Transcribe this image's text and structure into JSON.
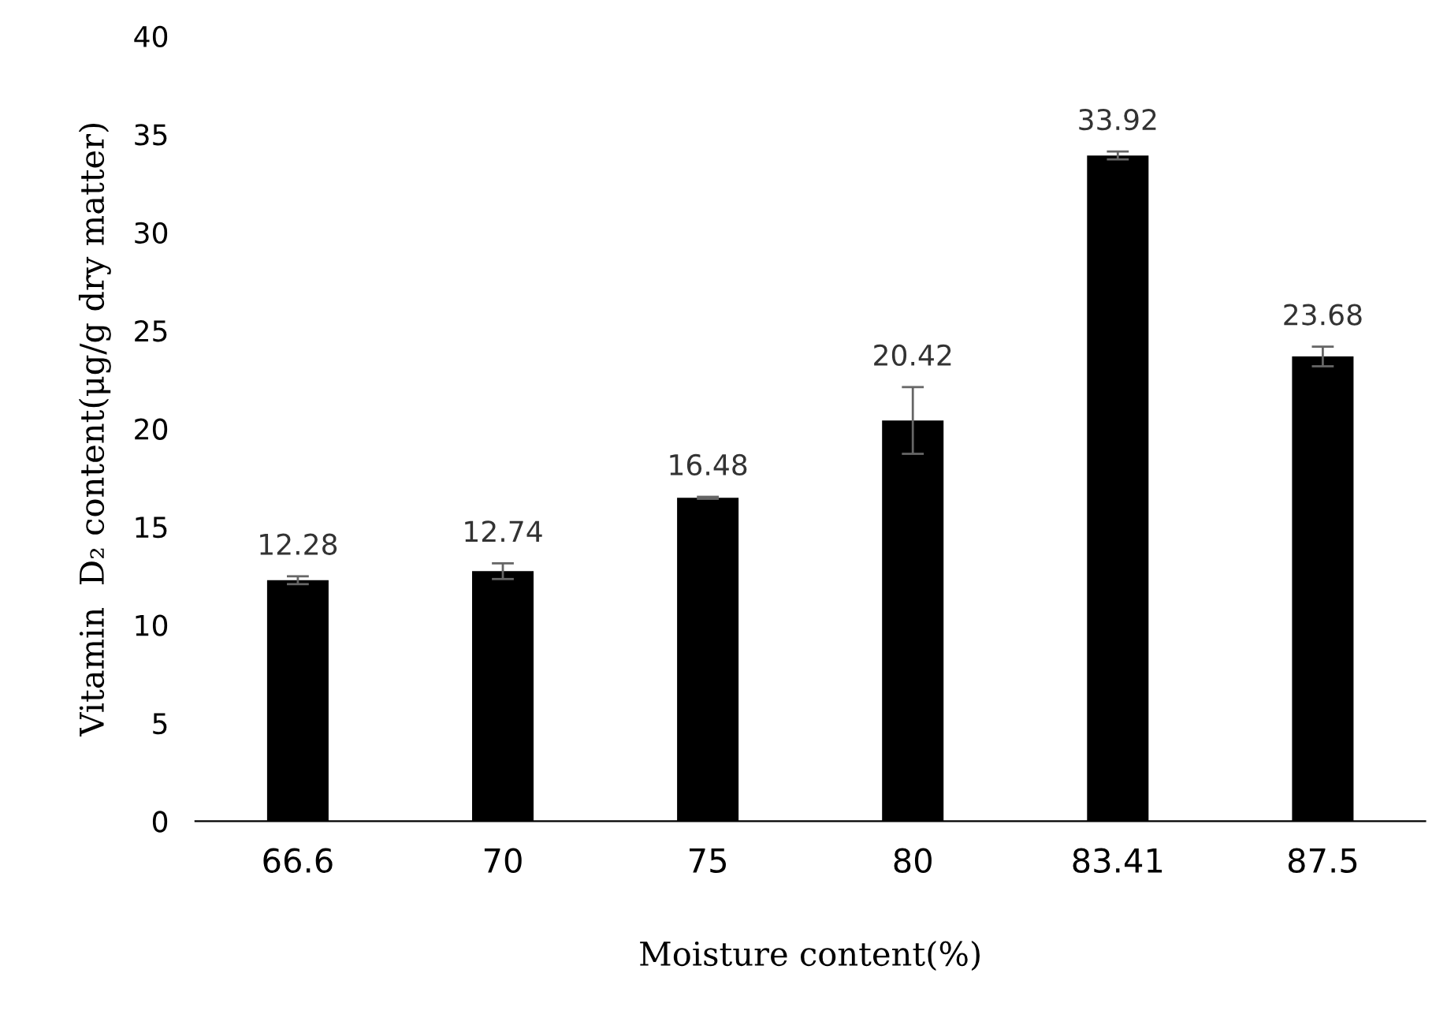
{
  "chart_data": {
    "type": "bar",
    "xlabel": "Moisture content(%)",
    "ylabel": "Vitamin  D₂ content(μg/g dry matter)",
    "categories": [
      "66.6",
      "70",
      "75",
      "80",
      "83.41",
      "87.5"
    ],
    "values": [
      12.28,
      12.74,
      16.48,
      20.42,
      33.92,
      23.68
    ],
    "errors": [
      0.2,
      0.4,
      0.05,
      1.7,
      0.2,
      0.5
    ],
    "color": "#000000",
    "data_labels": true,
    "grid": false,
    "legend": false,
    "ylim": [
      0,
      40
    ],
    "yticks": [
      0,
      5,
      10,
      15,
      20,
      25,
      30,
      35,
      40
    ]
  }
}
